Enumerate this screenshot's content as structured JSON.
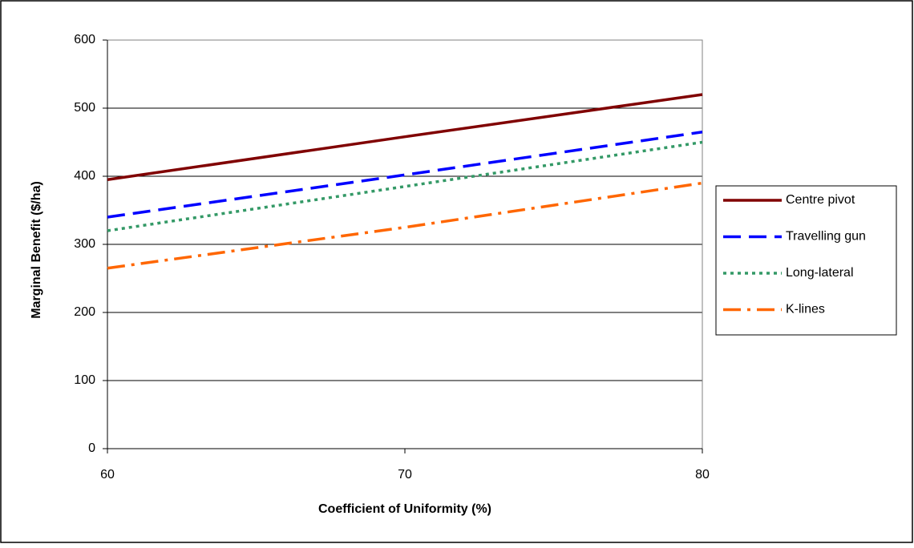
{
  "chart_data": {
    "type": "line",
    "x": [
      60,
      70,
      80
    ],
    "xlabel": "Coefficient of Uniformity (%)",
    "ylabel": "Marginal Benefit ($/ha)",
    "series": [
      {
        "name": "Centre pivot",
        "color": "#800000",
        "dash": "solid",
        "values": [
          395,
          458,
          520
        ]
      },
      {
        "name": "Travelling gun",
        "color": "#0000ff",
        "dash": "long",
        "values": [
          340,
          402,
          465
        ]
      },
      {
        "name": "Long-lateral",
        "color": "#339966",
        "dash": "dot",
        "values": [
          320,
          385,
          450
        ]
      },
      {
        "name": "K-lines",
        "color": "#ff6600",
        "dash": "dashdot",
        "values": [
          265,
          325,
          390
        ]
      }
    ],
    "xlim": [
      60,
      80
    ],
    "xticks": [
      60,
      70,
      80
    ],
    "ylim": [
      0,
      600
    ],
    "yticks": [
      0,
      100,
      200,
      300,
      400,
      500,
      600
    ],
    "grid": true,
    "legend": "right"
  }
}
